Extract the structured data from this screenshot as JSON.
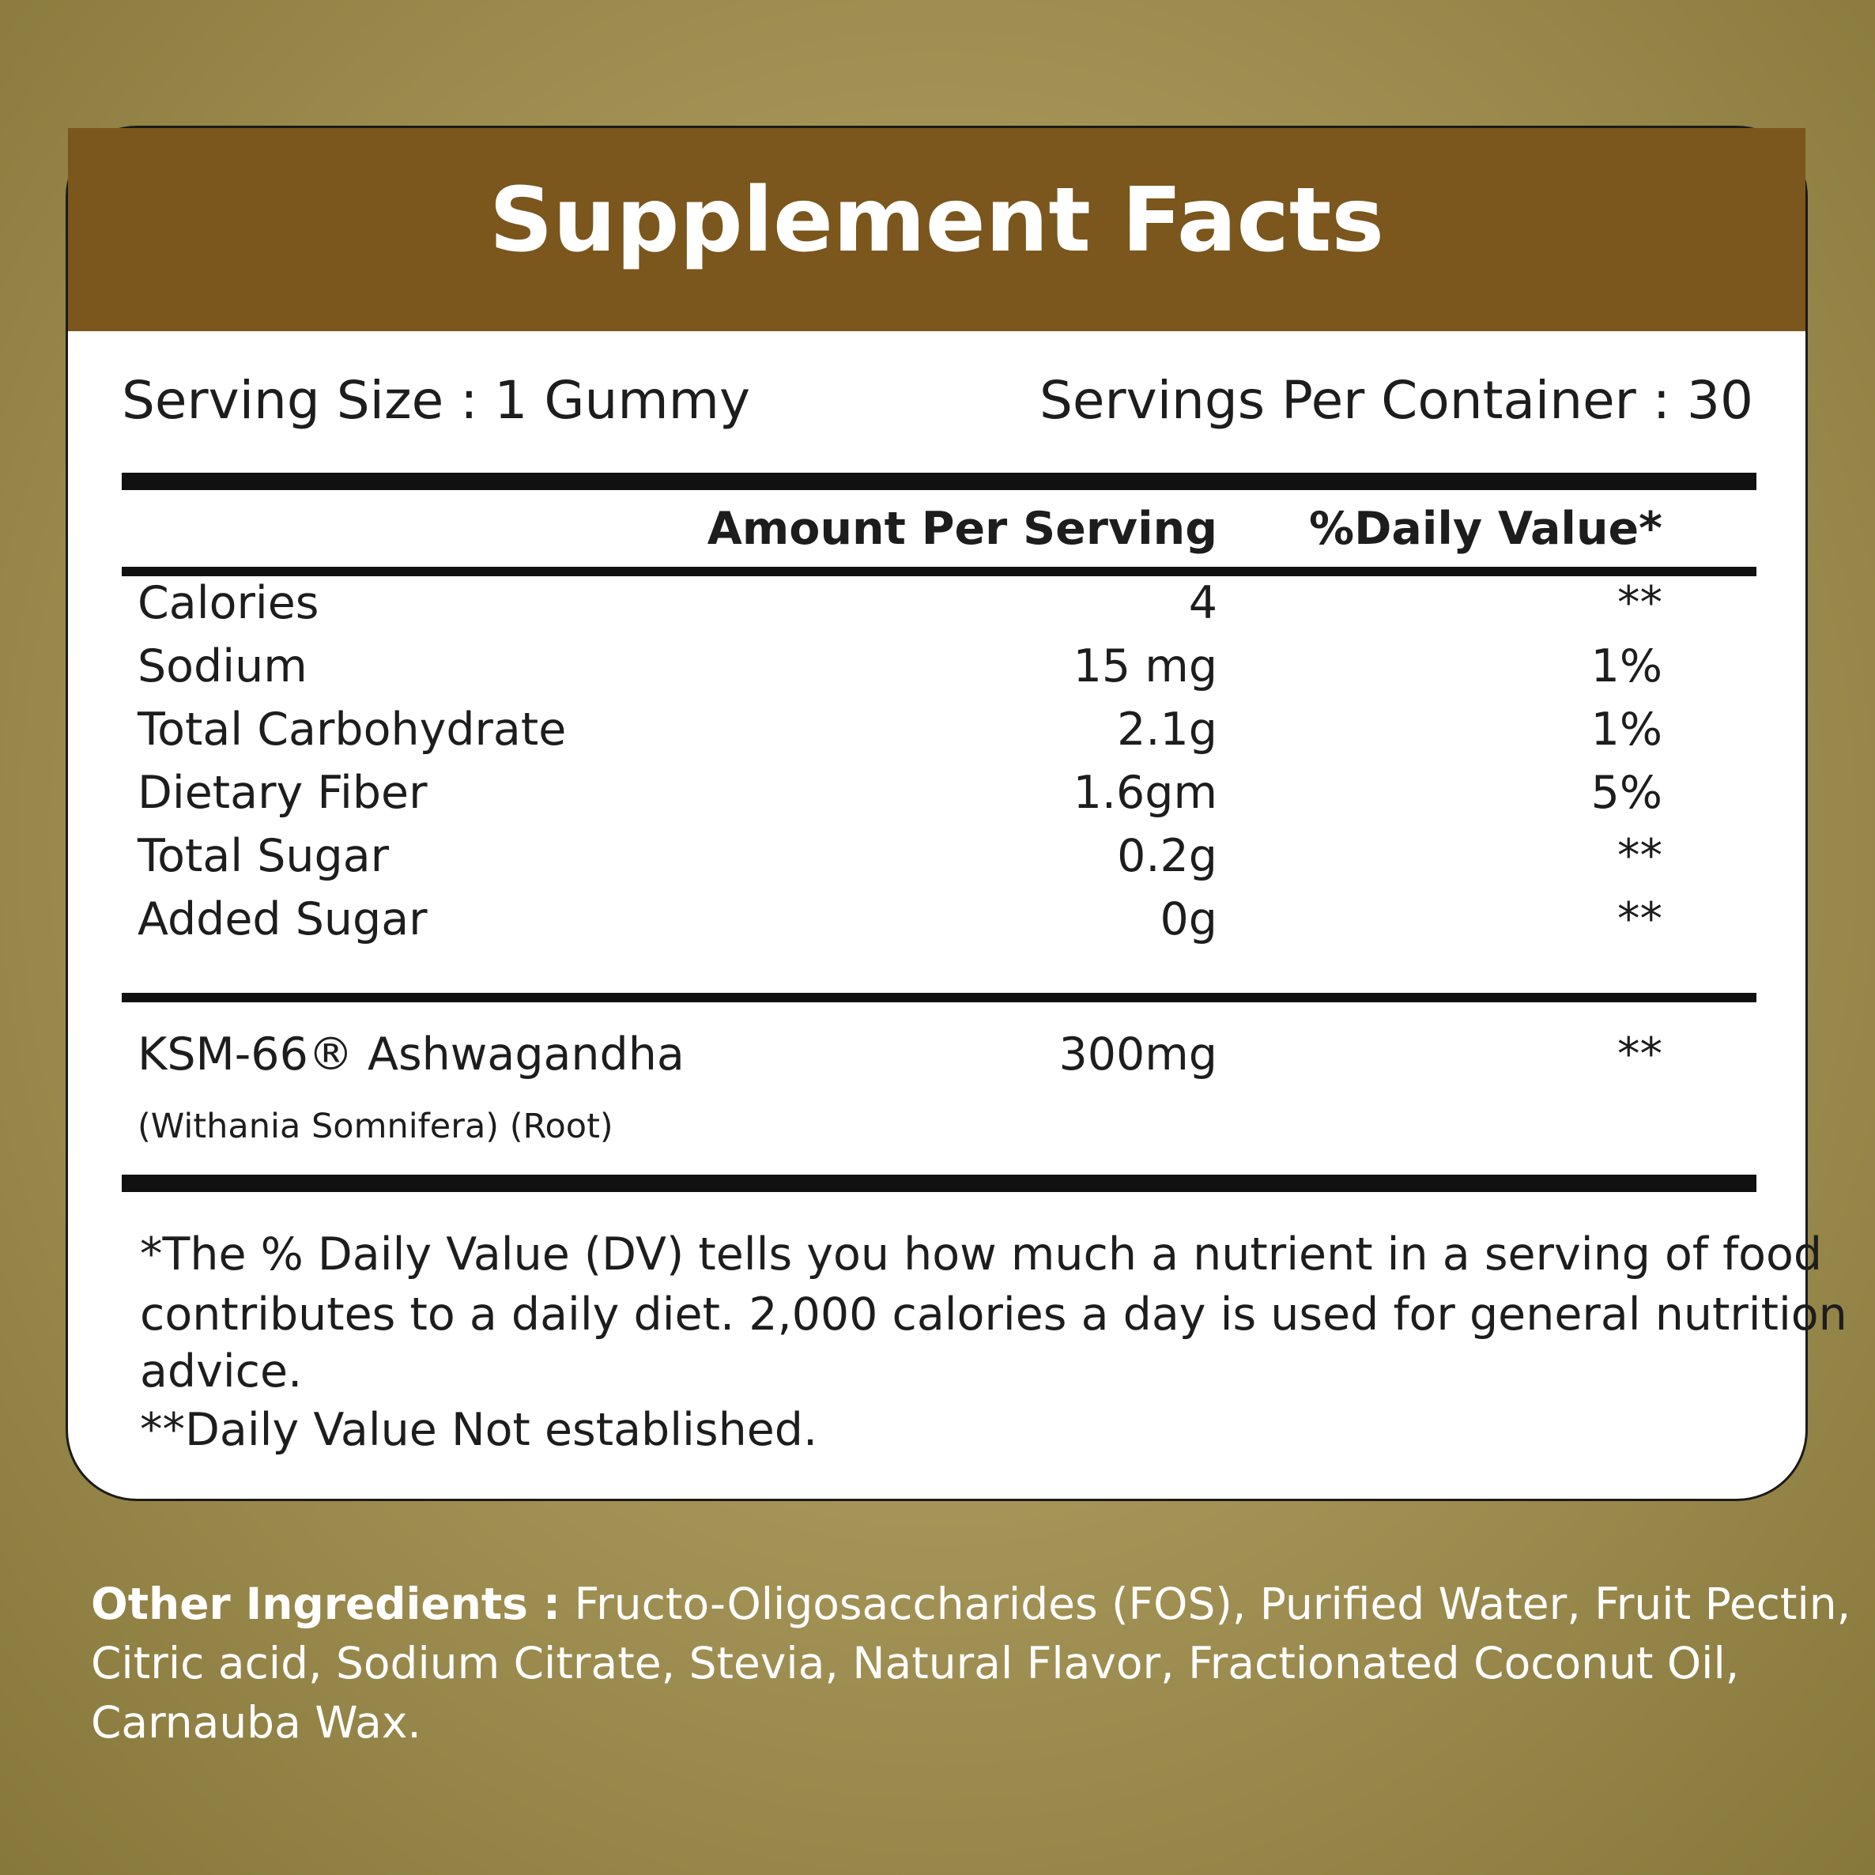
{
  "header": {
    "title": "Supplement Facts"
  },
  "serving": {
    "size": "Serving Size : 1 Gummy",
    "per_container": "Servings Per Container : 30"
  },
  "columns": {
    "amount": "Amount Per Serving",
    "daily_value": "%Daily Value*"
  },
  "rows": [
    [
      "Calories",
      "4",
      "**"
    ],
    [
      "Sodium",
      "15 mg",
      "1%"
    ],
    [
      "Total Carbohydrate",
      "2.1g",
      "1%"
    ],
    [
      "Dietary Fiber",
      "1.6gm",
      "5%"
    ],
    [
      "Total Sugar",
      "0.2g",
      "**"
    ],
    [
      "Added Sugar",
      "0g",
      "**"
    ]
  ],
  "ingredient": {
    "name": "KSM-66® Ashwagandha",
    "amount": "300mg",
    "daily_value": "**",
    "detail": "(Withania Somnifera) (Root)"
  },
  "footnote": [
    "*The % Daily Value (DV) tells you how much a nutrient in a serving of food",
    "contributes to a daily diet. 2,000 calories a day is used for general nutrition",
    "advice.",
    "**Daily Value Not established."
  ],
  "other_ingredients": {
    "label": "Other Ingredients :",
    "lines": [
      " Fructo-Oligosaccharides (FOS), Purified Water, Fruit Pectin,",
      "Citric acid, Sodium Citrate, Stevia, Natural Flavor, Fractionated Coconut Oil,",
      "Carnauba Wax."
    ]
  }
}
